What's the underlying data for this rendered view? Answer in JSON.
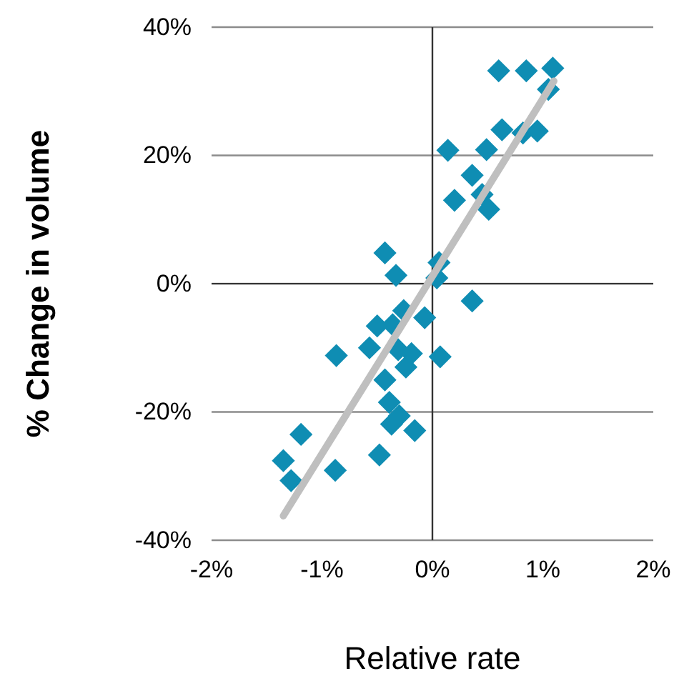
{
  "chart_data": {
    "type": "scatter",
    "xlabel": "Relative rate",
    "ylabel": "% Change in volume",
    "xlim": [
      -2,
      2
    ],
    "ylim": [
      -40,
      40
    ],
    "xticks": [
      {
        "value": -2,
        "label": "-2%"
      },
      {
        "value": -1,
        "label": "-1%"
      },
      {
        "value": 0,
        "label": "0%"
      },
      {
        "value": 1,
        "label": "1%"
      },
      {
        "value": 2,
        "label": "2%"
      }
    ],
    "yticks": [
      {
        "value": -40,
        "label": "-40%"
      },
      {
        "value": -20,
        "label": "-20%"
      },
      {
        "value": 0,
        "label": "0%"
      },
      {
        "value": 20,
        "label": "20%"
      },
      {
        "value": 40,
        "label": "40%"
      }
    ],
    "grid": "y",
    "ref_lines": [
      {
        "axis": "x",
        "value": 0,
        "color": "#333333"
      }
    ],
    "series": [
      {
        "color": "#0f8db3",
        "marker": "diamond",
        "x": [
          0.6,
          0.85,
          1.09,
          1.05,
          0.63,
          0.82,
          0.95,
          0.14,
          0.49,
          0.36,
          0.45,
          0.2,
          0.51,
          -0.43,
          -0.33,
          0.06,
          0.04,
          0.36,
          -0.26,
          -0.07,
          -0.5,
          -0.36,
          -0.87,
          -0.57,
          -0.31,
          -0.19,
          0.07,
          -0.24,
          -0.43,
          -0.39,
          -0.3,
          -0.37,
          -0.16,
          -1.19,
          -0.48,
          -1.35,
          -0.88,
          -1.28
        ],
        "values": [
          33.2,
          33.2,
          33.6,
          30.3,
          24.0,
          23.5,
          23.8,
          20.8,
          20.9,
          16.9,
          13.9,
          13.0,
          11.6,
          4.8,
          1.3,
          3.3,
          0.9,
          -2.7,
          -4.2,
          -5.3,
          -6.6,
          -6.4,
          -11.2,
          -10.0,
          -10.3,
          -10.9,
          -11.4,
          -13.0,
          -15.0,
          -18.5,
          -20.6,
          -21.9,
          -22.9,
          -23.5,
          -26.7,
          -27.6,
          -29.1,
          -30.7
        ]
      },
      {
        "type": "line",
        "color": "#bfbfbf",
        "line_style": "solid",
        "x": [
          -1.35,
          1.1
        ],
        "values": [
          -36.2,
          31.6
        ]
      }
    ]
  }
}
